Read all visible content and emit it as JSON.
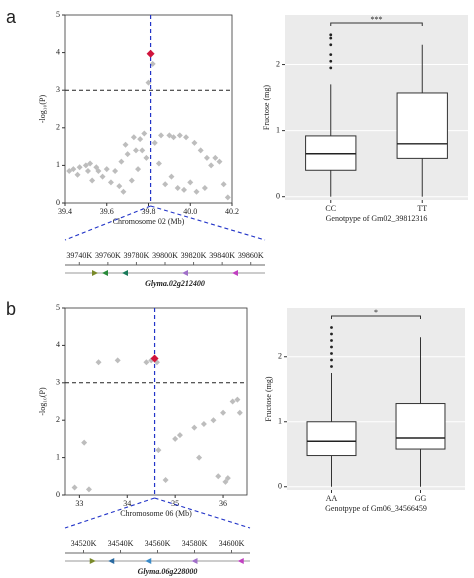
{
  "panel_labels": [
    "a",
    "b"
  ],
  "chart_data": [
    {
      "type": "scatter",
      "xlabel": "Chromosome 02 (Mb)",
      "ylabel": "-log₁₀(P)",
      "xlim": [
        39.4,
        40.2
      ],
      "xticks": [
        39.4,
        39.6,
        39.8,
        {
          "value": 40,
          "label": "40.0"
        },
        40.2
      ],
      "ylim": [
        0,
        5
      ],
      "yticks": [
        0,
        1,
        2,
        3,
        4,
        5
      ],
      "threshold": 3,
      "lead_x": 39.81,
      "color": "#bdbdbd",
      "x": [
        39.42,
        39.44,
        39.46,
        39.47,
        39.5,
        39.51,
        39.52,
        39.53,
        39.55,
        39.56,
        39.58,
        39.6,
        39.62,
        39.64,
        39.66,
        39.67,
        39.68,
        39.69,
        39.7,
        39.72,
        39.73,
        39.74,
        39.75,
        39.76,
        39.77,
        39.78,
        39.79,
        39.8,
        39.82,
        39.83,
        39.85,
        39.86,
        39.88,
        39.9,
        39.91,
        39.92,
        39.94,
        39.95,
        39.97,
        39.98,
        40.0,
        40.02,
        40.03,
        40.05,
        40.07,
        40.08,
        40.1,
        40.12,
        40.14,
        40.16,
        40.18
      ],
      "y": [
        0.85,
        0.9,
        0.75,
        0.95,
        1.0,
        0.85,
        1.05,
        0.6,
        0.95,
        0.85,
        0.7,
        0.9,
        0.55,
        0.85,
        0.45,
        1.1,
        0.3,
        1.55,
        1.3,
        0.6,
        1.75,
        1.4,
        0.9,
        1.7,
        1.4,
        1.85,
        1.2,
        3.2,
        3.7,
        1.6,
        1.05,
        1.8,
        0.5,
        1.8,
        0.7,
        1.75,
        0.4,
        1.8,
        0.35,
        1.75,
        0.55,
        1.6,
        0.3,
        1.4,
        0.4,
        1.2,
        1.0,
        1.2,
        1.1,
        0.5,
        0.15
      ],
      "highlight": {
        "x": 39.81,
        "y": 3.97,
        "color": "#d0143c"
      }
    },
    {
      "type": "box",
      "xlabel": "Genotpype of Gm02_39812316",
      "ylabel": "Fructose (mg)",
      "categories": [
        "CC",
        "TT"
      ],
      "ylim": [
        -0.05,
        2.75
      ],
      "yticks": [
        0,
        1,
        2
      ],
      "annotation": "***",
      "boxes": [
        {
          "min": 0,
          "q1": 0.4,
          "median": 0.65,
          "q3": 0.92,
          "max": 1.7,
          "outliers": [
            1.95,
            2.05,
            2.15,
            2.3,
            2.4,
            2.45
          ]
        },
        {
          "min": 0,
          "q1": 0.58,
          "median": 0.8,
          "q3": 1.57,
          "max": 2.3,
          "outliers": []
        }
      ]
    },
    {
      "type": "scatter",
      "xlabel": "Chromosome 06 (Mb)",
      "ylabel": "-log₁₀(P)",
      "xlim": [
        32.7,
        36.5
      ],
      "xticks": [
        33,
        34,
        35,
        36
      ],
      "ylim": [
        0,
        5
      ],
      "yticks": [
        0,
        1,
        2,
        3,
        4,
        5
      ],
      "threshold": 3,
      "lead_x": 34.57,
      "color": "#bdbdbd",
      "x": [
        32.9,
        33.1,
        33.2,
        33.4,
        33.8,
        34.4,
        34.5,
        34.62,
        34.65,
        34.8,
        35.0,
        35.1,
        35.4,
        35.5,
        35.6,
        35.8,
        35.9,
        36.0,
        36.05,
        36.1,
        36.2,
        36.3,
        36.35
      ],
      "y": [
        0.2,
        1.4,
        0.15,
        3.55,
        3.6,
        3.55,
        3.6,
        3.55,
        1.2,
        0.4,
        1.5,
        1.6,
        1.8,
        1.0,
        1.9,
        2.0,
        0.5,
        2.2,
        0.35,
        0.45,
        2.5,
        2.55,
        2.2
      ],
      "highlight": {
        "x": 34.57,
        "y": 3.65,
        "color": "#d0143c"
      }
    },
    {
      "type": "box",
      "xlabel": "Genotpype of Gm06_34566459",
      "ylabel": "Fructose (mg)",
      "categories": [
        "AA",
        "GG"
      ],
      "ylim": [
        -0.05,
        2.75
      ],
      "yticks": [
        0,
        1,
        2
      ],
      "annotation": "*",
      "boxes": [
        {
          "min": 0,
          "q1": 0.48,
          "median": 0.7,
          "q3": 1.0,
          "max": 1.75,
          "outliers": [
            1.85,
            1.95,
            2.05,
            2.15,
            2.25,
            2.35,
            2.45
          ]
        },
        {
          "min": 0,
          "q1": 0.58,
          "median": 0.75,
          "q3": 1.28,
          "max": 2.3,
          "outliers": []
        }
      ]
    }
  ],
  "gene_tracks": [
    {
      "ticks": [
        "39740K",
        "39760K",
        "39780K",
        "39800K",
        "39820K",
        "39840K",
        "39860K"
      ],
      "gene": "Glyma.02g212400"
    },
    {
      "ticks": [
        "34520K",
        "34540K",
        "34560K",
        "34580K",
        "34600K"
      ],
      "gene": "Glyma.06g228000"
    }
  ]
}
